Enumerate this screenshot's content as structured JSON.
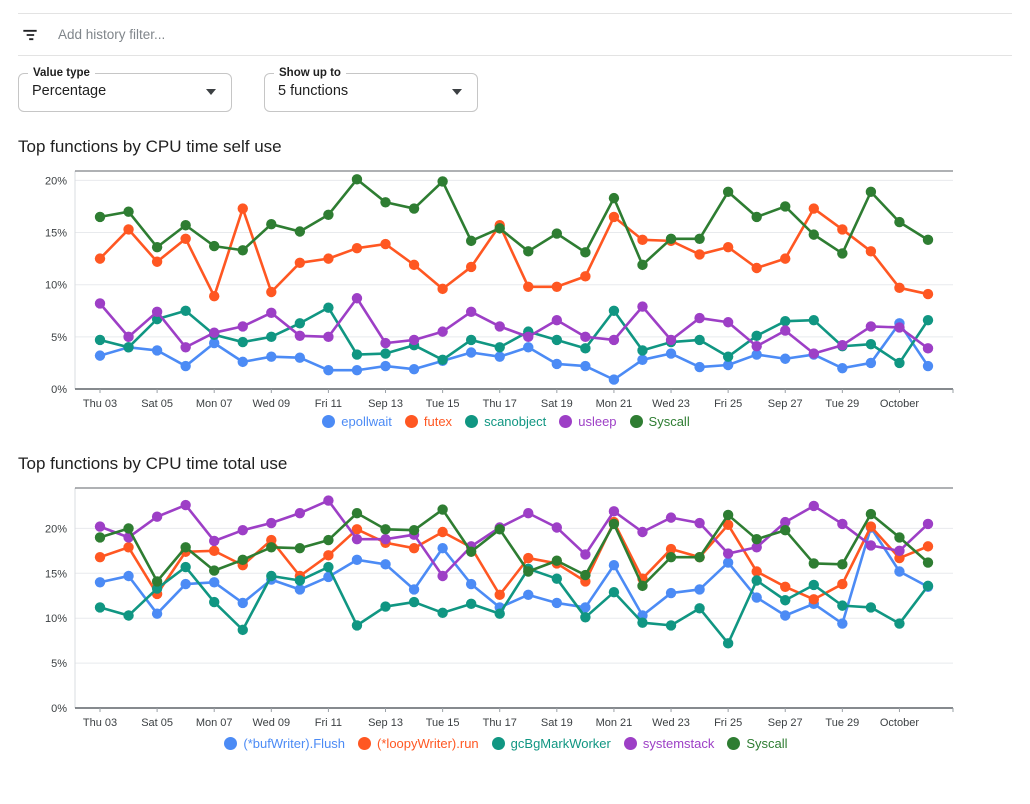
{
  "filter_bar": {
    "placeholder": "Add history filter..."
  },
  "controls": {
    "value_type": {
      "label": "Value type",
      "value": "Percentage"
    },
    "show_up_to": {
      "label": "Show up to",
      "value": "5 functions"
    }
  },
  "chart_data": [
    {
      "type": "line",
      "title": "Top functions by CPU time self use",
      "xlabel": "",
      "ylabel": "",
      "ylim": [
        0,
        20.9
      ],
      "yticks": [
        0,
        5,
        10,
        15,
        20
      ],
      "ytick_suffix": "%",
      "grid": true,
      "legend_position": "bottom",
      "x_tick_labels": [
        "Thu 03",
        "Sat 05",
        "Mon 07",
        "Wed 09",
        "Fri 11",
        "Sep 13",
        "Tue 15",
        "Thu 17",
        "Sat 19",
        "Mon 21",
        "Wed 23",
        "Fri 25",
        "Sep 27",
        "Tue 29",
        "October"
      ],
      "x_tick_every": 2,
      "points_per_series": 30,
      "series": [
        {
          "name": "epollwait",
          "color": "#4c8bf5",
          "values": [
            3.2,
            4.0,
            3.7,
            2.2,
            4.4,
            2.6,
            3.1,
            3.0,
            1.8,
            1.8,
            2.2,
            1.9,
            2.7,
            3.5,
            3.1,
            4.0,
            2.4,
            2.2,
            0.9,
            2.8,
            3.4,
            2.1,
            2.3,
            3.3,
            2.9,
            3.3,
            2.0,
            2.5,
            6.3,
            2.2
          ]
        },
        {
          "name": "futex",
          "color": "#ff5722",
          "values": [
            12.5,
            15.3,
            12.2,
            14.4,
            8.9,
            17.3,
            9.3,
            12.1,
            12.5,
            13.5,
            13.9,
            11.9,
            9.6,
            11.7,
            15.7,
            9.8,
            9.8,
            10.8,
            16.5,
            14.3,
            14.2,
            12.9,
            13.6,
            11.6,
            12.5,
            17.3,
            15.3,
            13.2,
            9.7,
            9.1
          ]
        },
        {
          "name": "scanobject",
          "color": "#109682",
          "values": [
            4.7,
            4.0,
            6.7,
            7.5,
            5.2,
            4.5,
            5.0,
            6.3,
            7.8,
            3.3,
            3.4,
            4.2,
            2.8,
            4.7,
            4.0,
            5.5,
            4.7,
            3.9,
            7.5,
            3.7,
            4.5,
            4.7,
            3.1,
            5.1,
            6.5,
            6.6,
            4.1,
            4.3,
            2.5,
            6.6
          ]
        },
        {
          "name": "usleep",
          "color": "#9d3fc6",
          "values": [
            8.2,
            5.0,
            7.4,
            4.0,
            5.4,
            6.0,
            7.3,
            5.1,
            5.0,
            8.7,
            4.4,
            4.7,
            5.5,
            7.4,
            6.0,
            5.0,
            6.6,
            5.0,
            4.7,
            7.9,
            4.7,
            6.8,
            6.4,
            4.1,
            5.6,
            3.4,
            4.2,
            6.0,
            5.9,
            3.9
          ]
        },
        {
          "name": "Syscall",
          "color": "#2e7d32",
          "values": [
            16.5,
            17.0,
            13.6,
            15.7,
            13.7,
            13.3,
            15.8,
            15.1,
            16.7,
            20.1,
            17.9,
            17.3,
            19.9,
            14.2,
            15.4,
            13.2,
            14.9,
            13.1,
            18.3,
            11.9,
            14.4,
            14.4,
            18.9,
            16.5,
            17.5,
            14.8,
            13.0,
            18.9,
            16.0,
            14.3
          ]
        }
      ]
    },
    {
      "type": "line",
      "title": "Top functions by CPU time total use",
      "xlabel": "",
      "ylabel": "",
      "ylim": [
        0,
        24.5
      ],
      "yticks": [
        0,
        5,
        10,
        15,
        20
      ],
      "ytick_suffix": "%",
      "grid": true,
      "legend_position": "bottom",
      "x_tick_labels": [
        "Thu 03",
        "Sat 05",
        "Mon 07",
        "Wed 09",
        "Fri 11",
        "Sep 13",
        "Tue 15",
        "Thu 17",
        "Sat 19",
        "Mon 21",
        "Wed 23",
        "Fri 25",
        "Sep 27",
        "Tue 29",
        "October"
      ],
      "x_tick_every": 2,
      "points_per_series": 30,
      "series": [
        {
          "name": "(*bufWriter).Flush",
          "color": "#4c8bf5",
          "values": [
            14.0,
            14.7,
            10.5,
            13.8,
            14.0,
            11.7,
            14.3,
            13.2,
            14.6,
            16.5,
            16.0,
            13.2,
            17.8,
            13.8,
            11.2,
            12.6,
            11.7,
            11.2,
            15.9,
            10.3,
            12.8,
            13.2,
            16.2,
            12.3,
            10.3,
            11.6,
            9.4,
            20.1,
            15.2,
            13.5
          ]
        },
        {
          "name": "(*loopyWriter).run",
          "color": "#ff5722",
          "values": [
            16.8,
            17.9,
            12.7,
            17.4,
            17.5,
            15.9,
            18.7,
            14.7,
            17.0,
            19.9,
            18.4,
            17.8,
            19.6,
            17.9,
            12.6,
            16.7,
            16.1,
            14.1,
            20.7,
            14.4,
            17.7,
            16.8,
            20.4,
            15.2,
            13.5,
            12.1,
            13.8,
            20.2,
            16.7,
            18.0
          ]
        },
        {
          "name": "gcBgMarkWorker",
          "color": "#109682",
          "values": [
            11.2,
            10.3,
            13.3,
            15.7,
            11.8,
            8.7,
            14.7,
            14.2,
            15.7,
            9.2,
            11.3,
            11.8,
            10.6,
            11.6,
            10.5,
            15.5,
            14.4,
            10.1,
            12.9,
            9.5,
            9.2,
            11.1,
            7.2,
            14.2,
            12.0,
            13.7,
            11.4,
            11.2,
            9.4,
            13.6
          ]
        },
        {
          "name": "systemstack",
          "color": "#9d3fc6",
          "values": [
            20.2,
            19.0,
            21.3,
            22.6,
            18.6,
            19.8,
            20.6,
            21.7,
            23.1,
            18.8,
            18.8,
            19.3,
            14.7,
            18.0,
            20.1,
            21.7,
            20.1,
            17.1,
            21.9,
            19.6,
            21.2,
            20.6,
            17.2,
            17.9,
            20.7,
            22.5,
            20.5,
            18.1,
            17.5,
            20.5
          ]
        },
        {
          "name": "Syscall",
          "color": "#2e7d32",
          "values": [
            19.0,
            20.0,
            14.1,
            17.9,
            15.3,
            16.5,
            17.9,
            17.8,
            18.7,
            21.7,
            19.9,
            19.8,
            22.1,
            17.4,
            19.9,
            15.2,
            16.4,
            14.8,
            20.5,
            13.6,
            16.8,
            16.8,
            21.5,
            18.8,
            19.8,
            16.1,
            16.0,
            21.6,
            19.0,
            16.2
          ]
        }
      ]
    }
  ]
}
